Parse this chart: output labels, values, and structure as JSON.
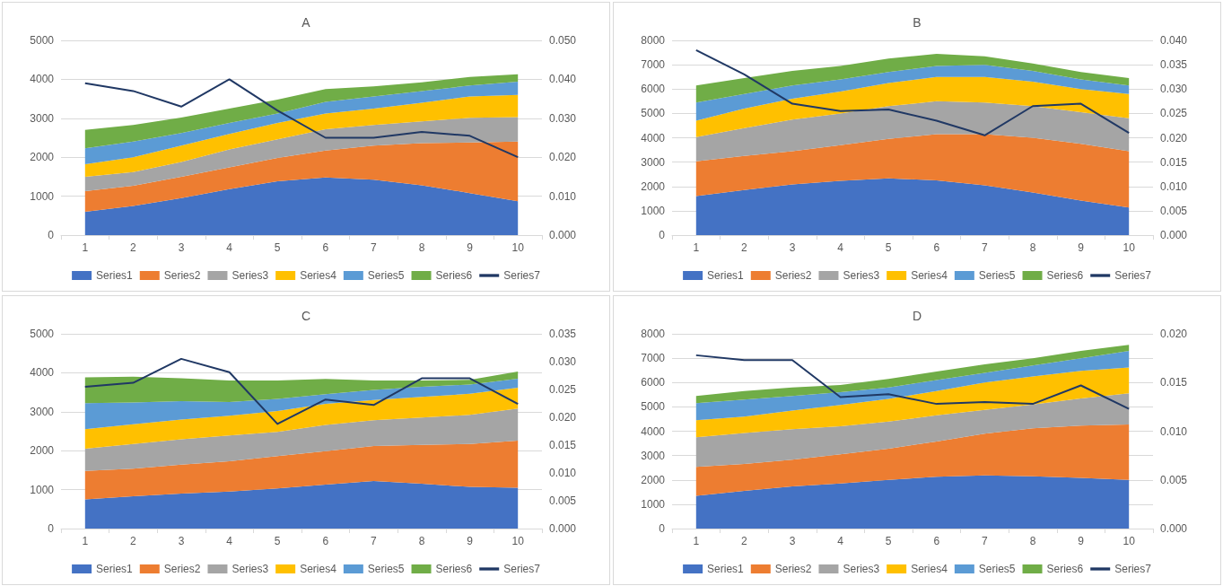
{
  "chart_data": [
    {
      "type": "area",
      "title": "A",
      "categories": [
        "1",
        "2",
        "3",
        "4",
        "5",
        "6",
        "7",
        "8",
        "9",
        "10"
      ],
      "stacked": true,
      "grid": "y",
      "legend": "bottom",
      "ylim": [
        0,
        5000
      ],
      "yticks": [
        0,
        1000,
        2000,
        3000,
        4000,
        5000
      ],
      "y2lim": [
        0,
        0.05
      ],
      "y2ticks": [
        {
          "value": 0,
          "label": "0.000"
        },
        {
          "value": 0.01,
          "label": "0.010"
        },
        {
          "value": 0.02,
          "label": "0.020"
        },
        {
          "value": 0.03,
          "label": "0.030"
        },
        {
          "value": 0.04,
          "label": "0.040"
        },
        {
          "value": 0.05,
          "label": "0.050"
        }
      ],
      "series": [
        {
          "name": "Series1",
          "color": "#4472c4",
          "values": [
            600,
            750,
            950,
            1180,
            1380,
            1480,
            1420,
            1280,
            1080,
            870
          ]
        },
        {
          "name": "Series2",
          "color": "#ed7d31",
          "values": [
            530,
            520,
            550,
            560,
            600,
            690,
            880,
            1080,
            1300,
            1530
          ]
        },
        {
          "name": "Series3",
          "color": "#a5a5a5",
          "values": [
            370,
            350,
            380,
            460,
            480,
            550,
            530,
            560,
            630,
            630
          ]
        },
        {
          "name": "Series4",
          "color": "#ffc000",
          "values": [
            320,
            380,
            420,
            400,
            420,
            400,
            420,
            480,
            550,
            570
          ]
        },
        {
          "name": "Series5",
          "color": "#5b9bd5",
          "values": [
            410,
            400,
            320,
            280,
            240,
            300,
            310,
            300,
            280,
            340
          ]
        },
        {
          "name": "Series6",
          "color": "#70ad47",
          "values": [
            470,
            430,
            400,
            370,
            360,
            330,
            260,
            220,
            220,
            190
          ]
        },
        {
          "name": "Series7",
          "color": "#203864",
          "type": "line",
          "axis": "y2",
          "values": [
            0.039,
            0.037,
            0.033,
            0.04,
            0.032,
            0.025,
            0.025,
            0.0265,
            0.0255,
            0.02
          ]
        }
      ]
    },
    {
      "type": "area",
      "title": "B",
      "categories": [
        "1",
        "2",
        "3",
        "4",
        "5",
        "6",
        "7",
        "8",
        "9",
        "10"
      ],
      "stacked": true,
      "grid": "y",
      "legend": "bottom",
      "ylim": [
        0,
        8000
      ],
      "yticks": [
        0,
        1000,
        2000,
        3000,
        4000,
        5000,
        6000,
        7000,
        8000
      ],
      "y2lim": [
        0,
        0.04
      ],
      "y2ticks": [
        {
          "value": 0,
          "label": "0.000"
        },
        {
          "value": 0.005,
          "label": "0.005"
        },
        {
          "value": 0.01,
          "label": "0.010"
        },
        {
          "value": 0.015,
          "label": "0.015"
        },
        {
          "value": 0.02,
          "label": "0.020"
        },
        {
          "value": 0.025,
          "label": "0.025"
        },
        {
          "value": 0.03,
          "label": "0.030"
        },
        {
          "value": 0.035,
          "label": "0.035"
        },
        {
          "value": 0.04,
          "label": "0.040"
        }
      ],
      "series": [
        {
          "name": "Series1",
          "color": "#4472c4",
          "values": [
            1600,
            1850,
            2080,
            2230,
            2330,
            2250,
            2050,
            1750,
            1420,
            1130
          ]
        },
        {
          "name": "Series2",
          "color": "#ed7d31",
          "values": [
            1430,
            1400,
            1370,
            1470,
            1620,
            1900,
            2100,
            2250,
            2330,
            2320
          ]
        },
        {
          "name": "Series3",
          "color": "#a5a5a5",
          "values": [
            1000,
            1150,
            1300,
            1300,
            1350,
            1350,
            1300,
            1300,
            1300,
            1350
          ]
        },
        {
          "name": "Series4",
          "color": "#ffc000",
          "values": [
            670,
            800,
            850,
            900,
            950,
            1000,
            1050,
            1000,
            950,
            1000
          ]
        },
        {
          "name": "Series5",
          "color": "#5b9bd5",
          "values": [
            750,
            600,
            550,
            500,
            450,
            450,
            500,
            450,
            400,
            350
          ]
        },
        {
          "name": "Series6",
          "color": "#70ad47",
          "values": [
            700,
            650,
            600,
            550,
            550,
            500,
            350,
            300,
            300,
            300
          ]
        },
        {
          "name": "Series7",
          "color": "#203864",
          "type": "line",
          "axis": "y2",
          "values": [
            0.038,
            0.033,
            0.027,
            0.0255,
            0.0258,
            0.0235,
            0.0205,
            0.0265,
            0.027,
            0.021
          ]
        }
      ]
    },
    {
      "type": "area",
      "title": "C",
      "categories": [
        "1",
        "2",
        "3",
        "4",
        "5",
        "6",
        "7",
        "8",
        "9",
        "10"
      ],
      "stacked": true,
      "grid": "y",
      "legend": "bottom",
      "ylim": [
        0,
        5000
      ],
      "yticks": [
        0,
        1000,
        2000,
        3000,
        4000,
        5000
      ],
      "y2lim": [
        0,
        0.035
      ],
      "y2ticks": [
        {
          "value": 0,
          "label": "0.000"
        },
        {
          "value": 0.005,
          "label": "0.005"
        },
        {
          "value": 0.01,
          "label": "0.010"
        },
        {
          "value": 0.015,
          "label": "0.015"
        },
        {
          "value": 0.02,
          "label": "0.020"
        },
        {
          "value": 0.025,
          "label": "0.025"
        },
        {
          "value": 0.03,
          "label": "0.030"
        },
        {
          "value": 0.035,
          "label": "0.035"
        }
      ],
      "series": [
        {
          "name": "Series1",
          "color": "#4472c4",
          "values": [
            750,
            830,
            900,
            950,
            1030,
            1130,
            1220,
            1150,
            1070,
            1050
          ]
        },
        {
          "name": "Series2",
          "color": "#ed7d31",
          "values": [
            730,
            710,
            740,
            780,
            830,
            860,
            900,
            1000,
            1100,
            1210
          ]
        },
        {
          "name": "Series3",
          "color": "#a5a5a5",
          "values": [
            570,
            630,
            650,
            660,
            620,
            670,
            660,
            700,
            750,
            820
          ]
        },
        {
          "name": "Series4",
          "color": "#ffc000",
          "values": [
            500,
            510,
            510,
            510,
            540,
            540,
            520,
            530,
            540,
            540
          ]
        },
        {
          "name": "Series5",
          "color": "#5b9bd5",
          "values": [
            670,
            560,
            470,
            350,
            310,
            250,
            260,
            260,
            240,
            230
          ]
        },
        {
          "name": "Series6",
          "color": "#70ad47",
          "values": [
            660,
            660,
            590,
            550,
            470,
            390,
            240,
            160,
            120,
            180
          ]
        },
        {
          "name": "Series7",
          "color": "#203864",
          "type": "line",
          "axis": "y2",
          "values": [
            0.0255,
            0.0262,
            0.0305,
            0.0281,
            0.0188,
            0.0232,
            0.0222,
            0.027,
            0.027,
            0.0224
          ]
        }
      ]
    },
    {
      "type": "area",
      "title": "D",
      "categories": [
        "1",
        "2",
        "3",
        "4",
        "5",
        "6",
        "7",
        "8",
        "9",
        "10"
      ],
      "stacked": true,
      "grid": "y",
      "legend": "bottom",
      "ylim": [
        0,
        8000
      ],
      "yticks": [
        0,
        1000,
        2000,
        3000,
        4000,
        5000,
        6000,
        7000,
        8000
      ],
      "y2lim": [
        0,
        0.02
      ],
      "y2ticks": [
        {
          "value": 0,
          "label": "0.000"
        },
        {
          "value": 0.005,
          "label": "0.005"
        },
        {
          "value": 0.01,
          "label": "0.010"
        },
        {
          "value": 0.015,
          "label": "0.015"
        },
        {
          "value": 0.02,
          "label": "0.020"
        }
      ],
      "series": [
        {
          "name": "Series1",
          "color": "#4472c4",
          "values": [
            1350,
            1550,
            1730,
            1850,
            2000,
            2130,
            2180,
            2150,
            2080,
            2000
          ]
        },
        {
          "name": "Series2",
          "color": "#ed7d31",
          "values": [
            1180,
            1100,
            1100,
            1200,
            1280,
            1450,
            1720,
            1970,
            2150,
            2280
          ]
        },
        {
          "name": "Series3",
          "color": "#a5a5a5",
          "values": [
            1220,
            1280,
            1250,
            1150,
            1120,
            1070,
            980,
            980,
            1120,
            1280
          ]
        },
        {
          "name": "Series4",
          "color": "#ffc000",
          "values": [
            700,
            670,
            770,
            880,
            930,
            1000,
            1120,
            1150,
            1130,
            1060
          ]
        },
        {
          "name": "Series5",
          "color": "#5b9bd5",
          "values": [
            700,
            700,
            600,
            520,
            470,
            450,
            400,
            450,
            520,
            680
          ]
        },
        {
          "name": "Series6",
          "color": "#70ad47",
          "values": [
            300,
            350,
            350,
            300,
            350,
            350,
            350,
            300,
            300,
            250
          ]
        },
        {
          "name": "Series7",
          "color": "#203864",
          "type": "line",
          "axis": "y2",
          "values": [
            0.0178,
            0.0173,
            0.0173,
            0.0135,
            0.0138,
            0.0128,
            0.013,
            0.0128,
            0.0147,
            0.0123
          ]
        }
      ]
    }
  ]
}
